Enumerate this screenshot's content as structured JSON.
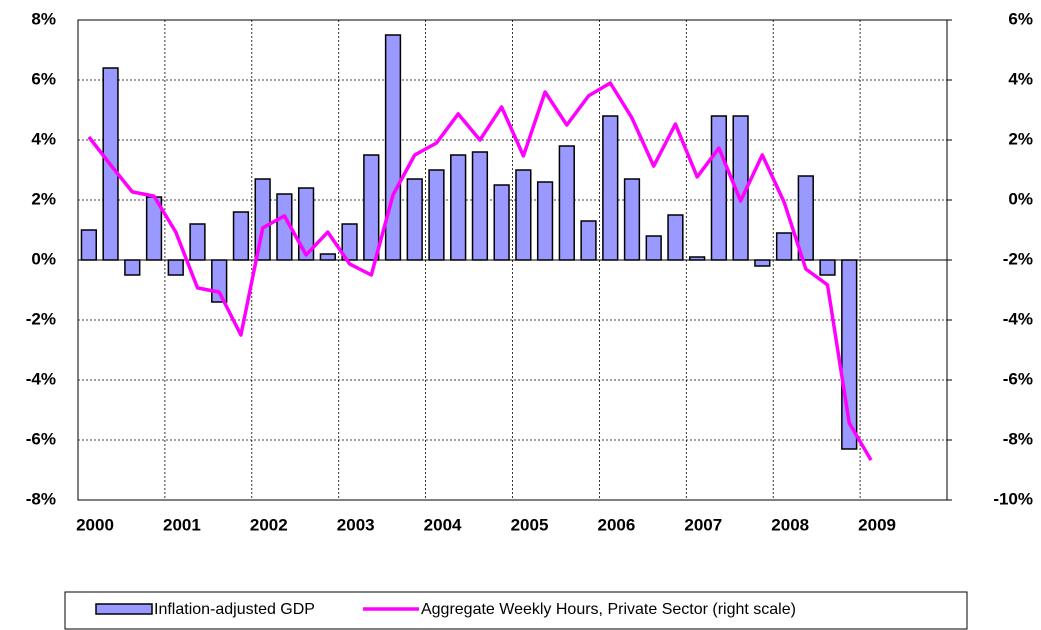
{
  "chart_data": {
    "type": "bar_line",
    "categories": [
      "2000",
      null,
      null,
      null,
      "2001",
      null,
      null,
      null,
      "2002",
      null,
      null,
      null,
      "2003",
      null,
      null,
      null,
      "2004",
      null,
      null,
      null,
      "2005",
      null,
      null,
      null,
      "2006",
      null,
      null,
      null,
      "2007",
      null,
      null,
      null,
      "2008",
      null,
      null,
      null,
      "2009",
      null,
      null,
      null
    ],
    "series": [
      {
        "name": "Inflation-adjusted GDP",
        "type": "bar",
        "color": "#9999ff",
        "values": [
          1.0,
          6.4,
          -0.5,
          2.1,
          -0.5,
          1.2,
          -1.4,
          1.6,
          2.7,
          2.2,
          2.4,
          0.2,
          1.2,
          3.5,
          7.5,
          2.7,
          3.0,
          3.5,
          3.6,
          2.5,
          3.0,
          2.6,
          3.8,
          1.3,
          4.8,
          2.7,
          0.8,
          1.5,
          0.1,
          4.8,
          4.8,
          -0.2,
          0.9,
          2.8,
          -0.5,
          -6.3,
          null,
          null,
          null,
          null
        ]
      },
      {
        "name": "Aggregate Weekly Hours, Private Sector (right scale)",
        "type": "line",
        "axis": "y2",
        "color": "#ff00ff",
        "values": [
          2.1,
          1.17,
          0.27,
          0.13,
          -1.07,
          -2.93,
          -3.07,
          -4.5,
          -0.93,
          -0.53,
          -1.83,
          -1.07,
          -2.13,
          -2.5,
          0.17,
          1.5,
          1.9,
          2.87,
          2.0,
          3.1,
          1.47,
          3.6,
          2.5,
          3.47,
          3.9,
          2.73,
          1.13,
          2.53,
          0.77,
          1.73,
          -0.03,
          1.5,
          -0.07,
          -2.3,
          -2.83,
          -7.43,
          -8.67,
          null,
          null,
          null
        ]
      }
    ],
    "ylim": [
      -8,
      8
    ],
    "yticks": [
      {
        "value": -8,
        "label": "-8%"
      },
      {
        "value": -6,
        "label": "-6%"
      },
      {
        "value": -4,
        "label": "-4%"
      },
      {
        "value": -2,
        "label": "-2%"
      },
      {
        "value": 0,
        "label": "0%"
      },
      {
        "value": 2,
        "label": "2%"
      },
      {
        "value": 4,
        "label": "4%"
      },
      {
        "value": 6,
        "label": "6%"
      },
      {
        "value": 8,
        "label": "8%"
      }
    ],
    "y2lim": [
      -10,
      6
    ],
    "y2ticks": [
      {
        "value": -10,
        "label": "-10%"
      },
      {
        "value": -8,
        "label": "-8%"
      },
      {
        "value": -6,
        "label": "-6%"
      },
      {
        "value": -4,
        "label": "-4%"
      },
      {
        "value": -2,
        "label": "-2%"
      },
      {
        "value": 0,
        "label": "0%"
      },
      {
        "value": 2,
        "label": "2%"
      },
      {
        "value": 4,
        "label": "4%"
      },
      {
        "value": 6,
        "label": "6%"
      }
    ],
    "grid": true,
    "legend": "bottom"
  }
}
